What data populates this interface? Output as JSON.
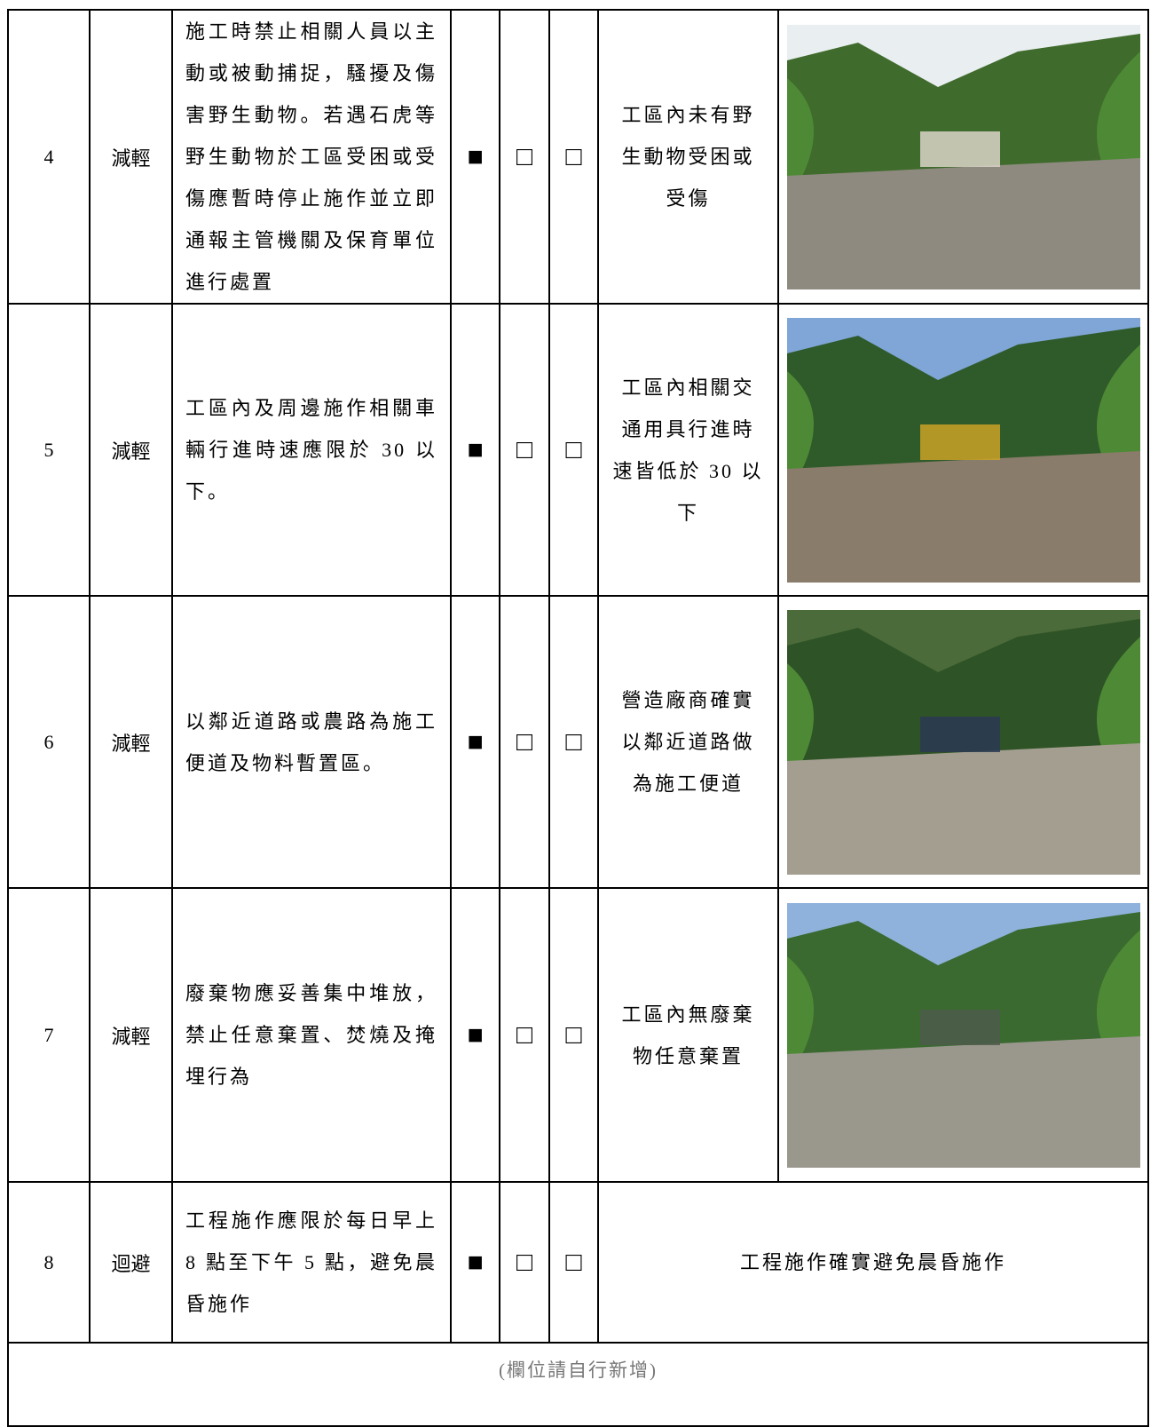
{
  "table": {
    "rows": [
      {
        "no": "4",
        "type": "減輕",
        "measure": "施工時禁止相關人員以主動或被動捕捉，騷擾及傷害野生動物。若遇石虎等野生動物於工區受困或受傷應暫時停止施作並立即通報主管機關及保育單位進行處置",
        "checks": [
          "■",
          "□",
          "□"
        ],
        "result": "工區內未有野生動物受困或受傷"
      },
      {
        "no": "5",
        "type": "減輕",
        "measure": "工區內及周邊施作相關車輛行進時速應限於 30 以下。",
        "checks": [
          "■",
          "□",
          "□"
        ],
        "result": "工區內相關交通用具行進時速皆低於 30 以下"
      },
      {
        "no": "6",
        "type": "減輕",
        "measure": "以鄰近道路或農路為施工便道及物料暫置區。",
        "checks": [
          "■",
          "□",
          "□"
        ],
        "result": "營造廠商確實以鄰近道路做為施工便道"
      },
      {
        "no": "7",
        "type": "減輕",
        "measure": "廢棄物應妥善集中堆放，禁止任意棄置、焚燒及掩埋行為",
        "checks": [
          "■",
          "□",
          "□"
        ],
        "result": "工區內無廢棄物任意棄置"
      },
      {
        "no": "8",
        "type": "迴避",
        "measure": "工程施作應限於每日早上 8 點至下午 5 點，避免晨昏施作",
        "checks": [
          "■",
          "□",
          "□"
        ],
        "result": "工程施作確實避免晨昏施作"
      }
    ],
    "footer": "(欄位請自行新增)"
  }
}
